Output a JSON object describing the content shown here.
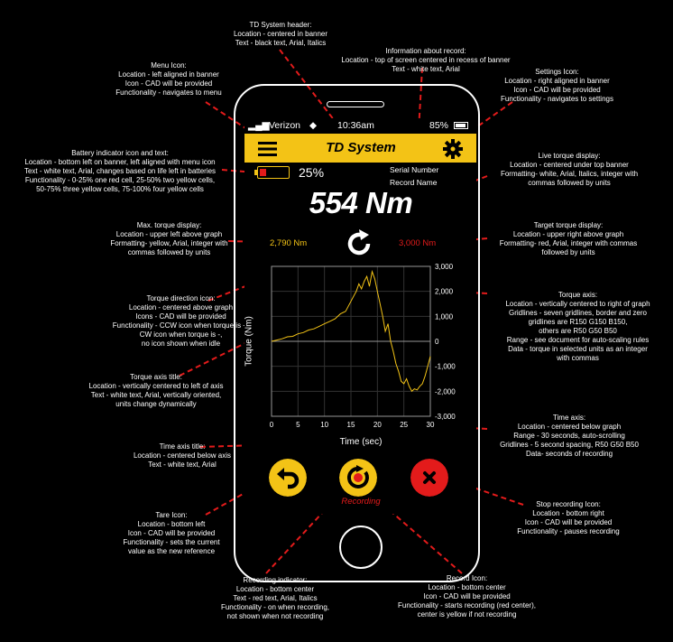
{
  "annotations": {
    "header": "TD System header:\nLocation - centered in banner\nText - black text, Arial, Italics",
    "info": "Information about record:\nLocation - top of screen centered in recess of banner\nText - white text, Arial",
    "menu": "Menu Icon:\nLocation - left aligned in banner\nIcon - CAD will be provided\nFunctionality - navigates to menu",
    "settings": "Settings Icon:\nLocation - right aligned in banner\nIcon - CAD will be provided\nFunctionality - navigates to settings",
    "battery": "Battery indicator icon and text:\nLocation - bottom left on banner, left aligned with menu icon\nText - white text, Arial, changes based on life left in batteries\nFunctionality - 0-25% one red cell, 25-50% two yellow cells,\n50-75% three yellow cells, 75-100% four yellow cells",
    "live": "Live torque display:\nLocation - centered under top banner\nFormatting- white, Arial, Italics, integer with\ncommas followed by units",
    "max": "Max. torque display:\nLocation - upper left above graph\nFormatting- yellow, Arial, integer with\ncommas followed by units",
    "target": "Target torque display:\nLocation - upper right above graph\nFormatting- red, Arial, integer with commas\nfollowed by units",
    "torque_axis": "Torque axis:\nLocation - vertically centered to right of graph\nGridlines - seven gridlines, border and zero\ngridlines are R150 G150 B150,\nothers are R50 G50 B50\nRange - see document for auto-scaling rules\nData - torque in selected units as an integer\nwith commas",
    "direction": "Torque direction icon:\nLocation - centered above graph\nIcons - CAD will be provided\nFunctionality - CCW icon when torque is +,\nCW icon when torque is -,\nno icon shown when idle",
    "yaxis_title": "Torque axis title:\nLocation - vertically centered to left of axis\nText - white text, Arial, vertically oriented,\nunits change dynamically",
    "time_axis": "Time axis:\nLocation - centered below graph\nRange - 30 seconds, auto-scrolling\nGridlines - 5 second spacing, R50 G50 B50\nData- seconds of recording",
    "time_title": "Time axis title:\nLocation - centered below axis\nText - white text, Arial",
    "tare": "Tare Icon:\nLocation - bottom left\nIcon - CAD will be provided\nFunctionality - sets the current\nvalue as the new reference",
    "stop": "Stop recording Icon:\nLocation - bottom right\nIcon - CAD will be provided\nFunctionality - pauses recording",
    "rec_indicator": "Recording indicator:\nLocation - bottom center\nText - red text, Arial, Italics\nFunctionality - on when recording,\nnot shown when not recording",
    "record": "Record Icon:\nLocation - bottom center\nIcon - CAD will be provided\nFunctionality - starts recording (red center),\ncenter is yellow if not recording"
  },
  "status": {
    "carrier": "Verizon",
    "time": "10:36am",
    "battery": "85%"
  },
  "banner": {
    "title": "TD System",
    "serial_label": "Serial Number",
    "record_label": "Record Name"
  },
  "battery_text": "25%",
  "live_torque": "554 Nm",
  "max_torque": "2,790 Nm",
  "target_torque": "3,000 Nm",
  "recording_label": "Recording",
  "colors": {
    "accent": "#f3c316",
    "alert": "#e31b1b"
  },
  "icons": {
    "menu": "hamburger-menu-icon",
    "settings": "gear-icon",
    "direction": "ccw-rotation-icon",
    "tare": "undo-arrow-icon",
    "record": "record-icon",
    "stop": "stop-x-icon"
  },
  "chart_data": {
    "type": "line",
    "xlabel": "Time (sec)",
    "ylabel": "Torque (Nm)",
    "xlim": [
      0,
      30
    ],
    "ylim": [
      -3000,
      3000
    ],
    "xticks": [
      0,
      5,
      10,
      15,
      20,
      25,
      30
    ],
    "yticks": [
      "3,000",
      "2,000",
      "1,000",
      "0",
      "-1,000",
      "-2,000",
      "-3,000"
    ],
    "ytick_values": [
      3000,
      2000,
      1000,
      0,
      -1000,
      -2000,
      -3000
    ],
    "grid": true,
    "x": [
      0,
      1,
      2,
      3,
      4,
      5,
      6,
      7,
      8,
      9,
      10,
      11,
      12,
      13,
      14,
      15,
      15.5,
      16,
      16.5,
      17,
      17.5,
      18,
      18.5,
      19,
      19.5,
      20,
      20.5,
      21,
      21.5,
      22,
      22.5,
      23,
      23.5,
      24,
      24.5,
      25,
      25.5,
      26,
      26.5,
      27,
      27.5,
      28,
      28.5,
      29,
      29.5,
      30
    ],
    "y": [
      0,
      50,
      100,
      180,
      200,
      300,
      350,
      450,
      500,
      600,
      700,
      800,
      900,
      1100,
      1200,
      1600,
      1800,
      2000,
      2300,
      2100,
      2400,
      2600,
      2200,
      2790,
      2500,
      2000,
      1500,
      1000,
      400,
      700,
      0,
      -400,
      -900,
      -1200,
      -1600,
      -1700,
      -1500,
      -1800,
      -2000,
      -1900,
      -1950,
      -1800,
      -1700,
      -1400,
      -1000,
      -600
    ]
  }
}
